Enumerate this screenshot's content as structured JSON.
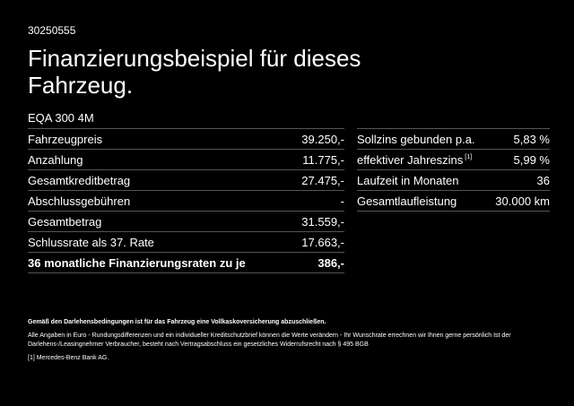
{
  "ref_number": "30250555",
  "title": "Finanzierungsbeispiel für dieses Fahrzeug.",
  "model": "EQA 300 4M",
  "left_rows": [
    {
      "label": "Fahrzeugpreis",
      "value": "39.250,-"
    },
    {
      "label": "Anzahlung",
      "value": "11.775,-"
    },
    {
      "label": "Gesamtkreditbetrag",
      "value": "27.475,-"
    },
    {
      "label": "Abschlussgebühren",
      "value": "-"
    },
    {
      "label": "Gesamtbetrag",
      "value": "31.559,-"
    },
    {
      "label": "Schlussrate als 37. Rate",
      "value": "17.663,-"
    },
    {
      "label": "36 monatliche Finanzierungsraten zu je",
      "value": "386,-"
    }
  ],
  "right_rows": [
    {
      "label": "Sollzins gebunden p.a.",
      "sup": "",
      "value": "5,83 %"
    },
    {
      "label": "effektiver Jahreszins",
      "sup": "[1]",
      "value": "5,99 %"
    },
    {
      "label": "Laufzeit in Monaten",
      "sup": "",
      "value": "36"
    },
    {
      "label": "Gesamtlaufleistung",
      "sup": "",
      "value": "30.000 km"
    }
  ],
  "notes": {
    "insurance": "Gemäß den Darlehensbedingungen ist für das Fahrzeug eine Vollkaskoversicherung abzuschließen.",
    "disclaimer": "Alle Angaben in Euro - Rundungsdifferenzen und ein individueller Kreditschutzbrief können die Werte verändern - Ihr Wunschrate errechnen wir Ihnen gerne persönlich Ist der Darlehens-/Leasingnehmer Verbraucher, besteht nach Vertragsabschluss ein gesetzliches Widerrufsrecht nach § 495 BGB",
    "footnote": "[1]  Mercedes-Benz Bank AG."
  }
}
